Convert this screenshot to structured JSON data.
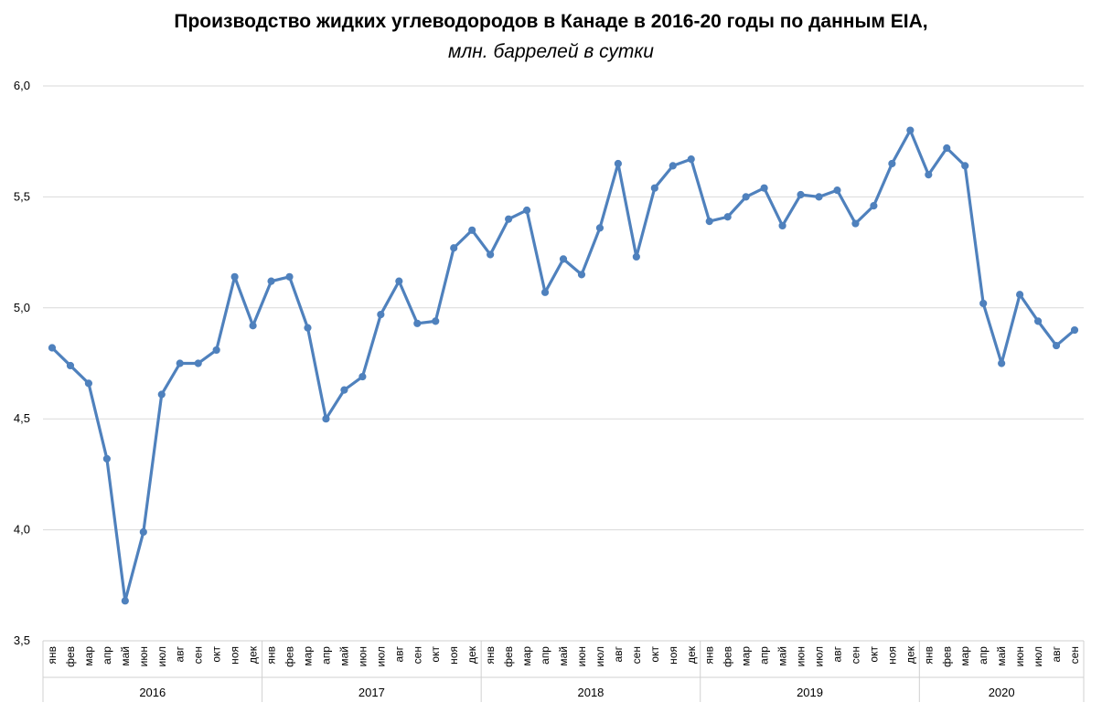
{
  "chart_data": {
    "type": "line",
    "title": "Производство жидких углеводородов в Канаде в 2016-20 годы по данным EIA,",
    "subtitle": "млн. баррелей в сутки",
    "ylim": [
      3.5,
      6.0
    ],
    "yticks": [
      "3,5",
      "4,0",
      "4,5",
      "5,0",
      "5,5",
      "6,0"
    ],
    "ytick_values": [
      3.5,
      4.0,
      4.5,
      5.0,
      5.5,
      6.0
    ],
    "grid": true,
    "line_color": "#4F81BD",
    "years": [
      {
        "label": "2016",
        "months": 12
      },
      {
        "label": "2017",
        "months": 12
      },
      {
        "label": "2018",
        "months": 12
      },
      {
        "label": "2019",
        "months": 12
      },
      {
        "label": "2020",
        "months": 9
      }
    ],
    "categories": [
      "янв",
      "фев",
      "мар",
      "апр",
      "май",
      "июн",
      "июл",
      "авг",
      "сен",
      "окт",
      "ноя",
      "дек",
      "янв",
      "фев",
      "мар",
      "апр",
      "май",
      "июн",
      "июл",
      "авг",
      "сен",
      "окт",
      "ноя",
      "дек",
      "янв",
      "фев",
      "мар",
      "апр",
      "май",
      "июн",
      "июл",
      "авг",
      "сен",
      "окт",
      "ноя",
      "дек",
      "янв",
      "фев",
      "мар",
      "апр",
      "май",
      "июн",
      "июл",
      "авг",
      "сен",
      "окт",
      "ноя",
      "дек",
      "янв",
      "фев",
      "мар",
      "апр",
      "май",
      "июн",
      "июл",
      "авг",
      "сен"
    ],
    "values": [
      4.82,
      4.74,
      4.66,
      4.32,
      3.68,
      3.99,
      4.61,
      4.75,
      4.75,
      4.81,
      5.14,
      4.92,
      5.12,
      5.14,
      4.91,
      4.5,
      4.63,
      4.69,
      4.97,
      5.12,
      4.93,
      4.94,
      5.27,
      5.35,
      5.24,
      5.4,
      5.44,
      5.07,
      5.22,
      5.15,
      5.36,
      5.65,
      5.23,
      5.54,
      5.64,
      5.67,
      5.39,
      5.41,
      5.5,
      5.54,
      5.37,
      5.51,
      5.5,
      5.53,
      5.38,
      5.46,
      5.65,
      5.8,
      5.6,
      5.72,
      5.64,
      5.02,
      4.75,
      5.06,
      4.94,
      4.83,
      4.9
    ]
  }
}
